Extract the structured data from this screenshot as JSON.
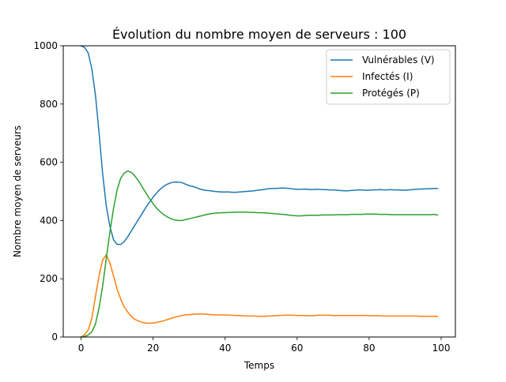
{
  "chart_data": {
    "type": "line",
    "title": "Évolution du nombre moyen de serveurs : 100",
    "xlabel": "Temps",
    "ylabel": "Nombre moyen de serveurs",
    "xlim": [
      -4.95,
      103.95
    ],
    "ylim": [
      0,
      1000
    ],
    "xticks": [
      "0",
      "20",
      "40",
      "60",
      "80",
      "100"
    ],
    "yticks": [
      "0",
      "200",
      "400",
      "600",
      "800",
      "1000"
    ],
    "grid": false,
    "legend_position": "top-right",
    "x": [
      0,
      1,
      2,
      3,
      4,
      5,
      6,
      7,
      8,
      9,
      10,
      11,
      12,
      13,
      14,
      15,
      16,
      17,
      18,
      19,
      20,
      21,
      22,
      23,
      24,
      25,
      26,
      27,
      28,
      29,
      30,
      31,
      32,
      33,
      34,
      35,
      36,
      37,
      38,
      39,
      40,
      41,
      42,
      43,
      44,
      45,
      46,
      47,
      48,
      49,
      50,
      51,
      52,
      53,
      54,
      55,
      56,
      57,
      58,
      59,
      60,
      61,
      62,
      63,
      64,
      65,
      66,
      67,
      68,
      69,
      70,
      71,
      72,
      73,
      74,
      75,
      76,
      77,
      78,
      79,
      80,
      81,
      82,
      83,
      84,
      85,
      86,
      87,
      88,
      89,
      90,
      91,
      92,
      93,
      94,
      95,
      96,
      97,
      98,
      99
    ],
    "series": [
      {
        "name": "Vulnérables (V)",
        "color": "#1f77b4",
        "values": [
          1000,
          994,
          975,
          920,
          830,
          700,
          560,
          450,
          380,
          335,
          318,
          318,
          328,
          345,
          365,
          385,
          405,
          425,
          445,
          463,
          480,
          495,
          508,
          518,
          525,
          530,
          532,
          532,
          530,
          525,
          520,
          517,
          513,
          508,
          505,
          503,
          502,
          500,
          499,
          498,
          498,
          498,
          497,
          497,
          498,
          499,
          500,
          501,
          502,
          504,
          505,
          507,
          509,
          510,
          510,
          511,
          512,
          511,
          510,
          508,
          507,
          507,
          508,
          507,
          506,
          507,
          507,
          506,
          506,
          505,
          505,
          504,
          503,
          502,
          502,
          503,
          504,
          505,
          505,
          504,
          504,
          505,
          505,
          506,
          505,
          505,
          506,
          505,
          505,
          504,
          504,
          505,
          506,
          507,
          508,
          508,
          509,
          509,
          510,
          510
        ]
      },
      {
        "name": "Infectés (I)",
        "color": "#ff7f0e",
        "values": [
          0,
          8,
          25,
          65,
          140,
          210,
          265,
          282,
          255,
          210,
          165,
          130,
          103,
          85,
          70,
          60,
          55,
          50,
          48,
          47,
          48,
          50,
          53,
          56,
          60,
          64,
          68,
          71,
          74,
          76,
          77,
          78,
          79,
          79,
          79,
          78,
          77,
          76,
          76,
          76,
          76,
          75,
          75,
          74,
          74,
          73,
          72,
          72,
          72,
          71,
          71,
          71,
          72,
          72,
          73,
          74,
          75,
          75,
          75,
          75,
          74,
          74,
          74,
          73,
          73,
          74,
          75,
          75,
          75,
          75,
          74,
          74,
          74,
          74,
          74,
          74,
          74,
          74,
          74,
          74,
          73,
          73,
          73,
          73,
          72,
          72,
          72,
          72,
          72,
          72,
          72,
          72,
          72,
          72,
          71,
          71,
          71,
          71,
          71,
          70
        ]
      },
      {
        "name": "Protégés (P)",
        "color": "#2ca02c",
        "values": [
          0,
          2,
          7,
          18,
          45,
          100,
          175,
          270,
          360,
          440,
          505,
          545,
          563,
          570,
          565,
          552,
          535,
          515,
          495,
          475,
          458,
          442,
          430,
          420,
          412,
          406,
          402,
          400,
          400,
          403,
          406,
          409,
          412,
          415,
          418,
          421,
          423,
          425,
          426,
          427,
          427,
          428,
          428,
          429,
          429,
          429,
          429,
          428,
          428,
          427,
          427,
          426,
          425,
          424,
          423,
          422,
          421,
          420,
          418,
          417,
          416,
          416,
          417,
          418,
          418,
          418,
          418,
          419,
          419,
          419,
          419,
          420,
          420,
          420,
          420,
          421,
          421,
          421,
          421,
          422,
          422,
          422,
          422,
          421,
          421,
          421,
          420,
          420,
          420,
          420,
          420,
          420,
          420,
          420,
          420,
          420,
          420,
          420,
          421,
          419
        ]
      }
    ]
  }
}
